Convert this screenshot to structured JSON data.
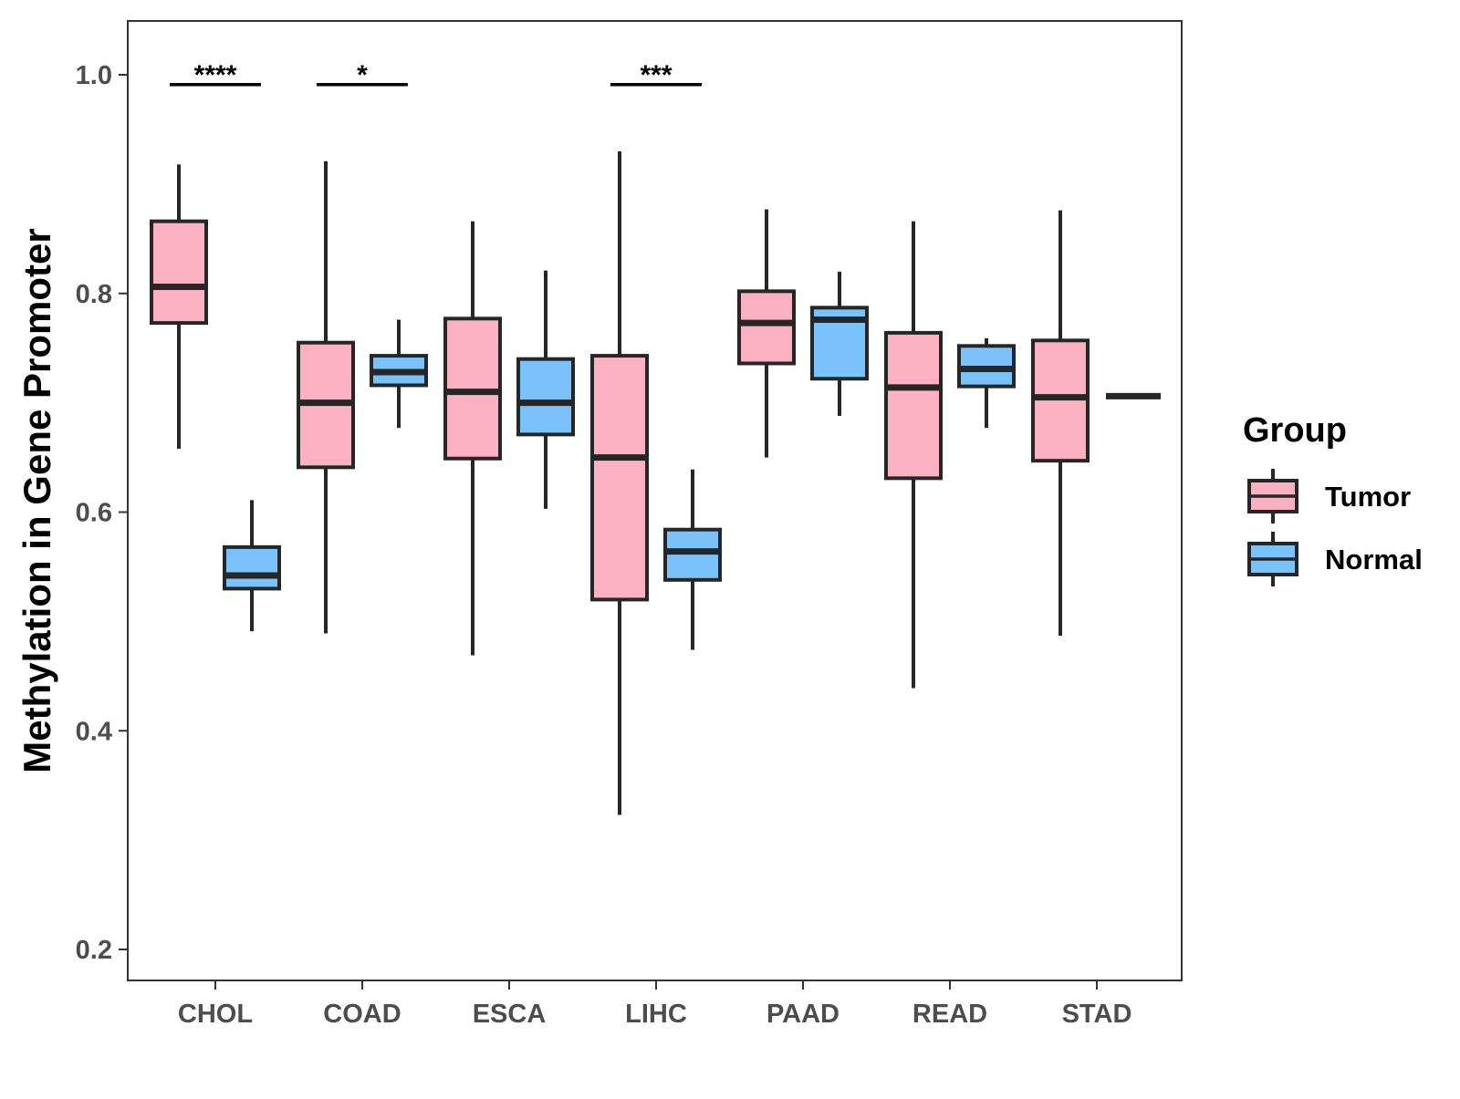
{
  "chart_data": {
    "type": "box",
    "title": "",
    "xlabel": "",
    "ylabel": "Methylation in Gene Promoter",
    "ylim": [
      0.172,
      1.05
    ],
    "yticks": [
      0.2,
      0.4,
      0.6,
      0.8,
      1.0
    ],
    "ytick_labels": [
      "0.2",
      "0.4",
      "0.6",
      "0.8",
      "1.0"
    ],
    "categories": [
      "CHOL",
      "COAD",
      "ESCA",
      "LIHC",
      "PAAD",
      "READ",
      "STAD"
    ],
    "legend": {
      "title": "Group",
      "position": "right",
      "items": [
        {
          "name": "Tumor",
          "color": "#FBB1C2"
        },
        {
          "name": "Normal",
          "color": "#7AC2FA"
        }
      ]
    },
    "series": [
      {
        "name": "Tumor",
        "color": "#FBB1C2",
        "boxes": [
          {
            "category": "CHOL",
            "lower_whisker": 0.658,
            "q1": 0.773,
            "median": 0.806,
            "q3": 0.866,
            "upper_whisker": 0.918
          },
          {
            "category": "COAD",
            "lower_whisker": 0.489,
            "q1": 0.641,
            "median": 0.7,
            "q3": 0.755,
            "upper_whisker": 0.921
          },
          {
            "category": "ESCA",
            "lower_whisker": 0.469,
            "q1": 0.649,
            "median": 0.71,
            "q3": 0.777,
            "upper_whisker": 0.866
          },
          {
            "category": "LIHC",
            "lower_whisker": 0.323,
            "q1": 0.52,
            "median": 0.65,
            "q3": 0.743,
            "upper_whisker": 0.93
          },
          {
            "category": "PAAD",
            "lower_whisker": 0.65,
            "q1": 0.736,
            "median": 0.773,
            "q3": 0.802,
            "upper_whisker": 0.877
          },
          {
            "category": "READ",
            "lower_whisker": 0.439,
            "q1": 0.631,
            "median": 0.714,
            "q3": 0.764,
            "upper_whisker": 0.866
          },
          {
            "category": "STAD",
            "lower_whisker": 0.487,
            "q1": 0.647,
            "median": 0.705,
            "q3": 0.757,
            "upper_whisker": 0.876
          }
        ]
      },
      {
        "name": "Normal",
        "color": "#7AC2FA",
        "boxes": [
          {
            "category": "CHOL",
            "lower_whisker": 0.491,
            "q1": 0.53,
            "median": 0.542,
            "q3": 0.568,
            "upper_whisker": 0.611
          },
          {
            "category": "COAD",
            "lower_whisker": 0.677,
            "q1": 0.716,
            "median": 0.728,
            "q3": 0.743,
            "upper_whisker": 0.776
          },
          {
            "category": "ESCA",
            "lower_whisker": 0.603,
            "q1": 0.671,
            "median": 0.7,
            "q3": 0.74,
            "upper_whisker": 0.821
          },
          {
            "category": "LIHC",
            "lower_whisker": 0.474,
            "q1": 0.538,
            "median": 0.564,
            "q3": 0.584,
            "upper_whisker": 0.639
          },
          {
            "category": "PAAD",
            "lower_whisker": 0.688,
            "q1": 0.722,
            "median": 0.776,
            "q3": 0.787,
            "upper_whisker": 0.82
          },
          {
            "category": "READ",
            "lower_whisker": 0.677,
            "q1": 0.715,
            "median": 0.731,
            "q3": 0.752,
            "upper_whisker": 0.759
          },
          {
            "category": "STAD",
            "lower_whisker": 0.706,
            "q1": 0.706,
            "median": 0.706,
            "q3": 0.706,
            "upper_whisker": 0.706
          }
        ]
      }
    ],
    "annotations": [
      {
        "category": "CHOL",
        "label": "****",
        "y": 0.991
      },
      {
        "category": "COAD",
        "label": "*",
        "y": 0.991
      },
      {
        "category": "LIHC",
        "label": "***",
        "y": 0.991
      }
    ]
  }
}
